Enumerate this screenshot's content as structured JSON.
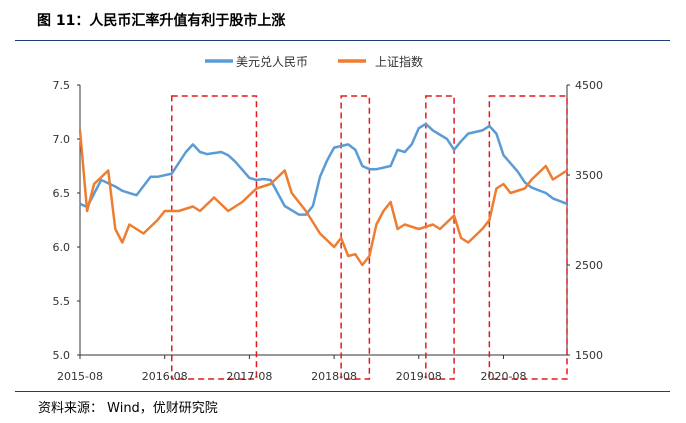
{
  "header": {
    "title": "图 11：人民币汇率升值有利于股市上涨"
  },
  "footer": {
    "source": "资料来源：  Wind，优财研究院"
  },
  "colors": {
    "usdcny": "#5b9bd5",
    "sse": "#ed7d31",
    "box": "#e31a1c",
    "rule": "#1f3e7a"
  },
  "chart_data": {
    "type": "line",
    "title": "",
    "xlabel": "",
    "ylabel": "",
    "x_range": [
      "2015-08",
      "2021-05"
    ],
    "x_ticks": [
      "2015-08",
      "2016-08",
      "2017-08",
      "2018-08",
      "2019-08",
      "2020-08"
    ],
    "legend_position": "top",
    "grid": false,
    "axes": {
      "left": {
        "min": 5.0,
        "max": 7.5,
        "ticks": [
          "5.0",
          "5.5",
          "6.0",
          "6.5",
          "7.0",
          "7.5"
        ]
      },
      "right": {
        "min": 1500,
        "max": 4500,
        "ticks": [
          "1500",
          "2500",
          "3500",
          "4500"
        ]
      }
    },
    "series": [
      {
        "name": "美元兑人民币",
        "axis": "left",
        "x": [
          "2015-08",
          "2015-09",
          "2015-11",
          "2016-01",
          "2016-02",
          "2016-04",
          "2016-06",
          "2016-07",
          "2016-09",
          "2016-11",
          "2016-12",
          "2017-01",
          "2017-02",
          "2017-04",
          "2017-05",
          "2017-06",
          "2017-08",
          "2017-09",
          "2017-10",
          "2017-11",
          "2018-01",
          "2018-03",
          "2018-04",
          "2018-05",
          "2018-06",
          "2018-07",
          "2018-08",
          "2018-10",
          "2018-11",
          "2018-12",
          "2019-01",
          "2019-02",
          "2019-04",
          "2019-05",
          "2019-06",
          "2019-07",
          "2019-08",
          "2019-09",
          "2019-10",
          "2019-12",
          "2020-01",
          "2020-02",
          "2020-03",
          "2020-05",
          "2020-06",
          "2020-07",
          "2020-08",
          "2020-10",
          "2020-11",
          "2020-12",
          "2021-02",
          "2021-03",
          "2021-05"
        ],
        "values": [
          6.4,
          6.37,
          6.62,
          6.56,
          6.52,
          6.48,
          6.65,
          6.65,
          6.68,
          6.88,
          6.95,
          6.88,
          6.86,
          6.88,
          6.85,
          6.79,
          6.64,
          6.62,
          6.63,
          6.62,
          6.38,
          6.3,
          6.3,
          6.38,
          6.65,
          6.8,
          6.92,
          6.95,
          6.9,
          6.75,
          6.72,
          6.72,
          6.75,
          6.9,
          6.88,
          6.95,
          7.1,
          7.14,
          7.08,
          7.0,
          6.9,
          6.98,
          7.05,
          7.08,
          7.12,
          7.05,
          6.85,
          6.7,
          6.6,
          6.55,
          6.5,
          6.45,
          6.4
        ]
      },
      {
        "name": "上证指数",
        "axis": "right",
        "x": [
          "2015-08",
          "2015-09",
          "2015-10",
          "2015-12",
          "2016-01",
          "2016-02",
          "2016-03",
          "2016-05",
          "2016-07",
          "2016-08",
          "2016-10",
          "2016-12",
          "2017-01",
          "2017-03",
          "2017-05",
          "2017-07",
          "2017-09",
          "2017-11",
          "2018-01",
          "2018-02",
          "2018-04",
          "2018-06",
          "2018-08",
          "2018-09",
          "2018-10",
          "2018-11",
          "2018-12",
          "2019-01",
          "2019-02",
          "2019-03",
          "2019-04",
          "2019-05",
          "2019-06",
          "2019-08",
          "2019-10",
          "2019-11",
          "2020-01",
          "2020-02",
          "2020-03",
          "2020-05",
          "2020-06",
          "2020-07",
          "2020-08",
          "2020-09",
          "2020-11",
          "2020-12",
          "2021-02",
          "2021-03",
          "2021-05"
        ],
        "values": [
          4000,
          3100,
          3400,
          3550,
          2900,
          2750,
          2950,
          2850,
          3000,
          3100,
          3100,
          3150,
          3100,
          3250,
          3100,
          3200,
          3350,
          3400,
          3550,
          3300,
          3100,
          2850,
          2700,
          2800,
          2600,
          2620,
          2500,
          2600,
          2950,
          3100,
          3200,
          2900,
          2950,
          2900,
          2950,
          2900,
          3050,
          2800,
          2750,
          2900,
          3000,
          3350,
          3400,
          3300,
          3350,
          3450,
          3600,
          3450,
          3550
        ]
      }
    ],
    "highlight_periods": [
      [
        "2016-09",
        "2017-09"
      ],
      [
        "2018-09",
        "2019-01"
      ],
      [
        "2019-09",
        "2020-01"
      ],
      [
        "2020-06",
        "2021-05"
      ]
    ]
  }
}
